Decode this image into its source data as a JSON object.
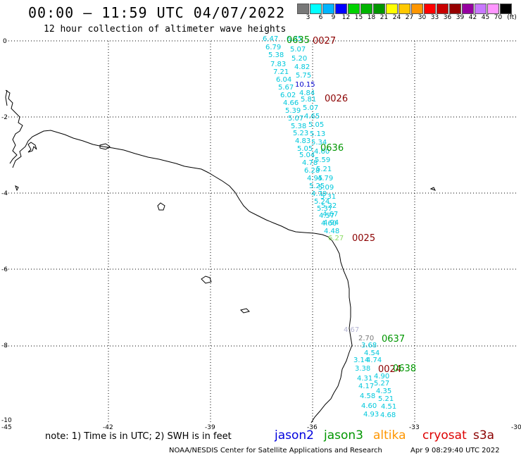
{
  "header": {
    "title": "00:00 – 11:59 UTC 04/07/2022",
    "subtitle": "12 hour collection of altimeter wave heights"
  },
  "colorbar": {
    "unit": "(ft)",
    "bins": [
      {
        "label": "3",
        "color": "#787878"
      },
      {
        "label": "6",
        "color": "#00ffff"
      },
      {
        "label": "9",
        "color": "#00b4ff"
      },
      {
        "label": "12",
        "color": "#0000ff"
      },
      {
        "label": "15",
        "color": "#00d200"
      },
      {
        "label": "18",
        "color": "#00b400"
      },
      {
        "label": "21",
        "color": "#009600"
      },
      {
        "label": "24",
        "color": "#ffff00"
      },
      {
        "label": "27",
        "color": "#ffc800"
      },
      {
        "label": "30",
        "color": "#ff9600"
      },
      {
        "label": "33",
        "color": "#ff0000"
      },
      {
        "label": "36",
        "color": "#c80000"
      },
      {
        "label": "39",
        "color": "#960000"
      },
      {
        "label": "42",
        "color": "#9600a0"
      },
      {
        "label": "45",
        "color": "#c878ff"
      },
      {
        "label": "70",
        "color": "#ff96ff"
      },
      {
        "label": "",
        "color": "#000000"
      }
    ]
  },
  "axes": {
    "y_ticks": [
      "0",
      "-2",
      "-4",
      "-6",
      "-8",
      "-10"
    ],
    "x_ticks": [
      "-45",
      "-42",
      "-39",
      "-36",
      "-33",
      "-30"
    ]
  },
  "passes": [
    {
      "label": "0027",
      "color": "#8b0000"
    },
    {
      "label": "0635",
      "color": "#009600"
    },
    {
      "label": "0026",
      "color": "#8b0000"
    },
    {
      "label": "0636",
      "color": "#009600"
    },
    {
      "label": "0025",
      "color": "#8b0000"
    },
    {
      "label": "0637",
      "color": "#009600"
    },
    {
      "label": "0024",
      "color": "#8b0000"
    },
    {
      "label": "0638",
      "color": "#009600"
    }
  ],
  "track_a_values": [
    "6.47",
    "6.79",
    "5.38",
    "7.83",
    "7.21",
    "6.04",
    "5.67",
    "6.02",
    "4.66",
    "5.39",
    "5.07",
    "5.38",
    "5.23",
    "4.83",
    "5.05",
    "5.04",
    "4.78",
    "6.28",
    "4.95",
    "5.25",
    "4.79",
    "5.24",
    "5.37",
    "4.57",
    "4.60",
    "4.48",
    "6.27"
  ],
  "track_b_values": [
    "6.35",
    "5.07",
    "5.20",
    "4.82",
    "5.75",
    "10.15",
    "4.84",
    "5.81",
    "5.07",
    "4.65",
    "5.05",
    "5.13",
    "5.34",
    "4.60",
    "5.59",
    "5.21",
    "4.79",
    "5.09",
    "5.31",
    "5.22",
    "4.67",
    "4.94"
  ],
  "track_c_values": [
    "4.67",
    "2.70",
    "3.68",
    "4.54",
    "3.14",
    "4.74",
    "3.38",
    "4.90",
    "4.31",
    "5.27",
    "4.17",
    "4.35",
    "4.58",
    "5.21",
    "4.60",
    "4.51",
    "4.93",
    "4.68"
  ],
  "note": "note: 1) Time is in UTC; 2) SWH is in feet",
  "missions": [
    {
      "name": "jason2",
      "color": "#0000dd"
    },
    {
      "name": "jason3",
      "color": "#009600"
    },
    {
      "name": "altika",
      "color": "#ff9600"
    },
    {
      "name": "cryosat",
      "color": "#dd0000"
    },
    {
      "name": "s3a",
      "color": "#8b0000"
    }
  ],
  "credit": "NOAA/NESDIS Center for Satellite Applications and Research",
  "timestamp": "Apr  9 08:29:40 UTC 2022"
}
